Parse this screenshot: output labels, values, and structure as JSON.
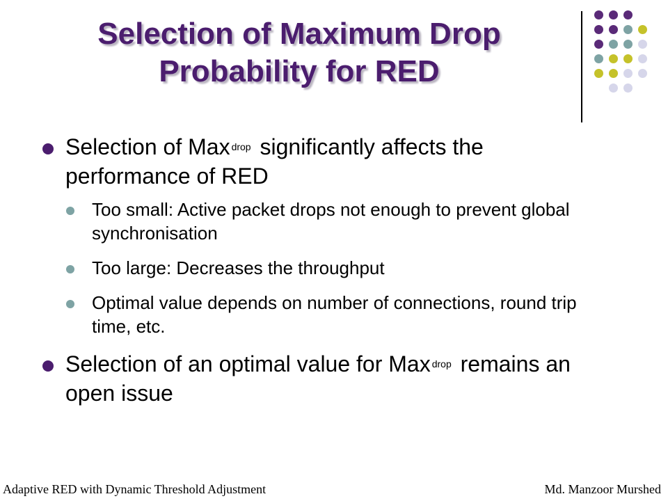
{
  "slide": {
    "title": "Selection of Maximum Drop Probability for RED",
    "bullets": {
      "b1": {
        "pre": "Selection of Max",
        "sub": "drop",
        "post": " significantly affects the performance of RED"
      },
      "b1_sub": [
        "Too small: Active packet drops not enough to prevent global synchronisation",
        "Too large: Decreases the throughput",
        "Optimal value depends on number of connections, round trip time, etc."
      ],
      "b2": {
        "pre": "Selection of an optimal value for Max",
        "sub": "drop",
        "post": " remains an open issue"
      }
    },
    "footer": {
      "left": "Adaptive RED with Dynamic Threshold Adjustment",
      "right": "Md. Manzoor Murshed"
    }
  },
  "colors": {
    "title": "#4b1d6e",
    "bullet_l1": "#4b1d6e",
    "bullet_l2": "#7ea3a4",
    "dot_purple": "#5a2a78",
    "dot_teal": "#7ea3a4",
    "dot_olive": "#c5c22a",
    "dot_lavender": "#d6d6ea"
  },
  "decoration": {
    "dot_rows": [
      [
        "purple",
        "purple",
        "purple"
      ],
      [
        "purple",
        "purple",
        "teal",
        "olive"
      ],
      [
        "purple",
        "teal",
        "teal",
        "lavender"
      ],
      [
        "teal",
        "olive",
        "olive",
        "lavender"
      ],
      [
        "olive",
        "olive",
        "lavender",
        "lavender"
      ],
      [
        "lavender",
        "lavender"
      ]
    ]
  }
}
